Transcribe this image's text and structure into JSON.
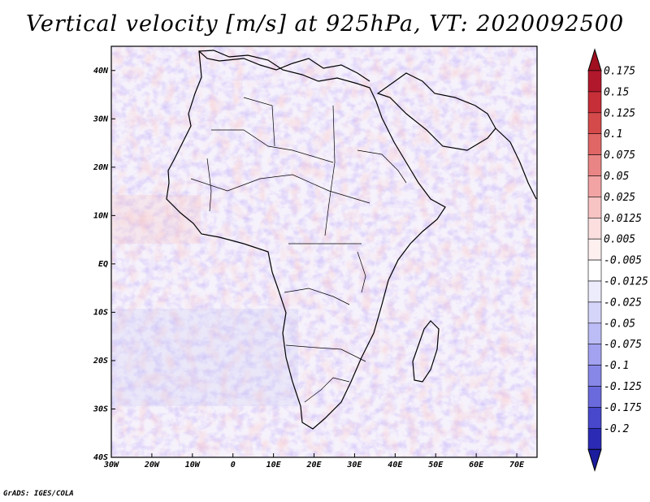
{
  "title": "Vertical velocity [m/s] at 925hPa, VT: 2020092500",
  "credit": "GrADS: IGES/COLA",
  "map": {
    "region": "Africa",
    "lon_range": [
      -30,
      75
    ],
    "lat_range": [
      -40,
      45
    ],
    "lat_ticks": [
      {
        "value": 40,
        "label": "40N"
      },
      {
        "value": 30,
        "label": "30N"
      },
      {
        "value": 20,
        "label": "20N"
      },
      {
        "value": 10,
        "label": "10N"
      },
      {
        "value": 0,
        "label": "EQ"
      },
      {
        "value": -10,
        "label": "10S"
      },
      {
        "value": -20,
        "label": "20S"
      },
      {
        "value": -30,
        "label": "30S"
      },
      {
        "value": -40,
        "label": "40S"
      }
    ],
    "lon_ticks": [
      {
        "value": -30,
        "label": "30W"
      },
      {
        "value": -20,
        "label": "20W"
      },
      {
        "value": -10,
        "label": "10W"
      },
      {
        "value": 0,
        "label": "0"
      },
      {
        "value": 10,
        "label": "10E"
      },
      {
        "value": 20,
        "label": "20E"
      },
      {
        "value": 30,
        "label": "30E"
      },
      {
        "value": 40,
        "label": "40E"
      },
      {
        "value": 50,
        "label": "50E"
      },
      {
        "value": 60,
        "label": "60E"
      },
      {
        "value": 70,
        "label": "70E"
      }
    ]
  },
  "colorbar": {
    "levels": [
      {
        "label": "0.175",
        "color": "#b2182b"
      },
      {
        "label": "0.15",
        "color": "#c62e38"
      },
      {
        "label": "0.125",
        "color": "#d44a4a"
      },
      {
        "label": "0.1",
        "color": "#e06666"
      },
      {
        "label": "0.075",
        "color": "#ea8585"
      },
      {
        "label": "0.05",
        "color": "#f2a3a3"
      },
      {
        "label": "0.025",
        "color": "#f8c3c3"
      },
      {
        "label": "0.0125",
        "color": "#fcdede"
      },
      {
        "label": "0.005",
        "color": "#fff0f0"
      },
      {
        "label": "-0.005",
        "color": "#ffffff"
      },
      {
        "label": "-0.0125",
        "color": "#ececfd"
      },
      {
        "label": "-0.025",
        "color": "#d5d5fa"
      },
      {
        "label": "-0.05",
        "color": "#bcbcf6"
      },
      {
        "label": "-0.075",
        "color": "#a2a2f0"
      },
      {
        "label": "-0.1",
        "color": "#8787e8"
      },
      {
        "label": "-0.125",
        "color": "#6a6adc"
      },
      {
        "label": "-0.175",
        "color": "#4848cc"
      },
      {
        "label": "-0.2",
        "color": "#2a2ab4"
      }
    ],
    "top_color": "#a01020",
    "bottom_color": "#1c1c9e"
  }
}
